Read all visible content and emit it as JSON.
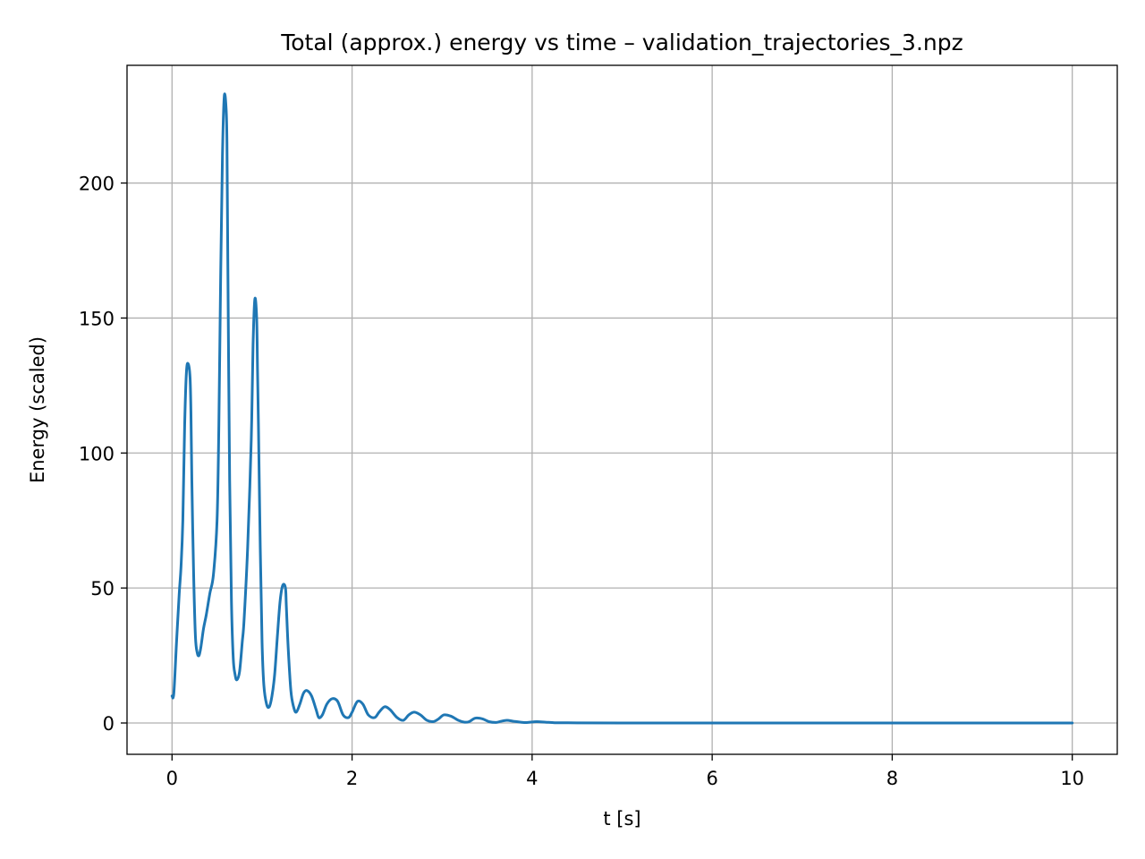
{
  "chart_data": {
    "type": "line",
    "title": "Total (approx.) energy vs time – validation_trajectories_3.npz",
    "xlabel": "t [s]",
    "ylabel": "Energy (scaled)",
    "xlim": [
      -0.5,
      10.5
    ],
    "ylim": [
      -11.6,
      243.6
    ],
    "grid": true,
    "x_ticks": [
      0,
      2,
      4,
      6,
      8,
      10
    ],
    "x_tick_labels": [
      "0",
      "2",
      "4",
      "6",
      "8",
      "10"
    ],
    "y_ticks": [
      0,
      50,
      100,
      150,
      200
    ],
    "y_tick_labels": [
      "0",
      "50",
      "100",
      "150",
      "200"
    ],
    "line_color": "#1f77b4",
    "grid_color": "#b0b0b0",
    "series": [
      {
        "name": "energy",
        "x": [
          0.0,
          0.02,
          0.05,
          0.08,
          0.1,
          0.12,
          0.14,
          0.16,
          0.18,
          0.2,
          0.21,
          0.22,
          0.24,
          0.26,
          0.28,
          0.3,
          0.32,
          0.35,
          0.38,
          0.42,
          0.46,
          0.5,
          0.52,
          0.54,
          0.56,
          0.58,
          0.6,
          0.61,
          0.62,
          0.64,
          0.66,
          0.68,
          0.7,
          0.72,
          0.75,
          0.78,
          0.8,
          0.84,
          0.88,
          0.9,
          0.92,
          0.94,
          0.95,
          0.96,
          0.98,
          1.0,
          1.02,
          1.05,
          1.08,
          1.11,
          1.14,
          1.17,
          1.2,
          1.23,
          1.26,
          1.27,
          1.29,
          1.32,
          1.35,
          1.38,
          1.42,
          1.46,
          1.5,
          1.55,
          1.6,
          1.63,
          1.67,
          1.72,
          1.78,
          1.84,
          1.9,
          1.96,
          2.0,
          2.06,
          2.12,
          2.18,
          2.25,
          2.3,
          2.36,
          2.42,
          2.5,
          2.57,
          2.63,
          2.69,
          2.76,
          2.83,
          2.9,
          2.96,
          3.02,
          3.1,
          3.18,
          3.25,
          3.3,
          3.37,
          3.45,
          3.52,
          3.6,
          3.65,
          3.72,
          3.8,
          3.9,
          3.95,
          4.05,
          4.15,
          4.25,
          4.35,
          4.5,
          5.0,
          6.0,
          7.0,
          8.0,
          9.0,
          10.0
        ],
        "values": [
          10,
          11,
          30,
          48,
          58,
          75,
          110,
          130,
          133,
          128,
          115,
          90,
          55,
          32,
          26,
          25,
          28,
          35,
          40,
          48,
          55,
          75,
          110,
          165,
          210,
          232,
          228,
          215,
          170,
          90,
          45,
          24,
          18,
          16,
          19,
          30,
          38,
          65,
          105,
          140,
          157,
          150,
          130,
          110,
          65,
          30,
          14,
          7,
          6,
          10,
          18,
          32,
          45,
          51,
          50,
          43,
          28,
          12,
          6,
          4,
          7,
          11,
          12,
          10,
          5,
          2,
          3,
          7,
          9,
          8,
          3,
          2,
          4,
          8,
          7,
          3,
          2,
          4,
          6,
          5,
          2,
          1,
          3,
          4,
          3,
          1,
          0.5,
          1.5,
          3,
          2.5,
          1,
          0.3,
          0.5,
          1.8,
          1.5,
          0.5,
          0.2,
          0.6,
          1.0,
          0.6,
          0.2,
          0.2,
          0.5,
          0.3,
          0.1,
          0.1,
          0.05,
          0,
          0,
          0,
          0,
          0,
          0
        ]
      }
    ]
  }
}
